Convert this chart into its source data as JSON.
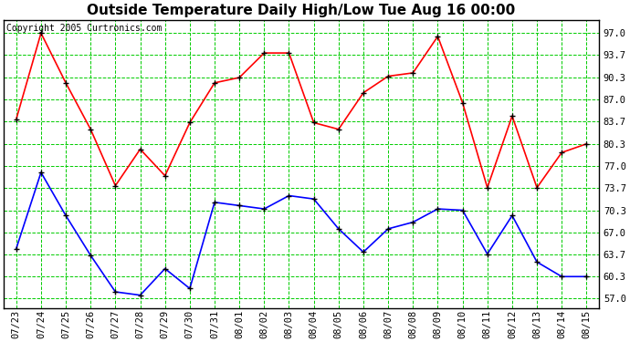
{
  "title": "Outside Temperature Daily High/Low Tue Aug 16 00:00",
  "copyright": "Copyright 2005 Curtronics.com",
  "x_labels": [
    "07/23",
    "07/24",
    "07/25",
    "07/26",
    "07/27",
    "07/28",
    "07/29",
    "07/30",
    "07/31",
    "08/01",
    "08/02",
    "08/03",
    "08/04",
    "08/05",
    "08/06",
    "08/07",
    "08/08",
    "08/09",
    "08/10",
    "08/11",
    "08/12",
    "08/13",
    "08/14",
    "08/15"
  ],
  "high_temps": [
    84.0,
    97.0,
    89.5,
    82.5,
    74.0,
    79.5,
    75.5,
    83.5,
    89.5,
    90.3,
    94.0,
    94.0,
    83.5,
    82.5,
    88.0,
    90.5,
    91.0,
    96.5,
    86.5,
    73.7,
    84.5,
    73.7,
    79.0,
    80.3
  ],
  "low_temps": [
    64.5,
    76.0,
    69.5,
    63.5,
    58.0,
    57.5,
    61.5,
    58.5,
    71.5,
    71.0,
    70.5,
    72.5,
    72.0,
    67.5,
    64.0,
    67.5,
    68.5,
    70.5,
    70.3,
    63.7,
    69.5,
    62.5,
    60.3,
    60.3
  ],
  "high_color": "#ff0000",
  "low_color": "#0000ff",
  "marker_color": "#000000",
  "fig_bg_color": "#ffffff",
  "plot_bg_color": "#ffffff",
  "grid_color": "#00cc00",
  "border_color": "#000000",
  "title_color": "#000000",
  "copyright_color": "#000000",
  "yticks": [
    57.0,
    60.3,
    63.7,
    67.0,
    70.3,
    73.7,
    77.0,
    80.3,
    83.7,
    87.0,
    90.3,
    93.7,
    97.0
  ],
  "ylim": [
    55.5,
    99.0
  ],
  "title_fontsize": 11,
  "tick_fontsize": 7.5,
  "copyright_fontsize": 7
}
